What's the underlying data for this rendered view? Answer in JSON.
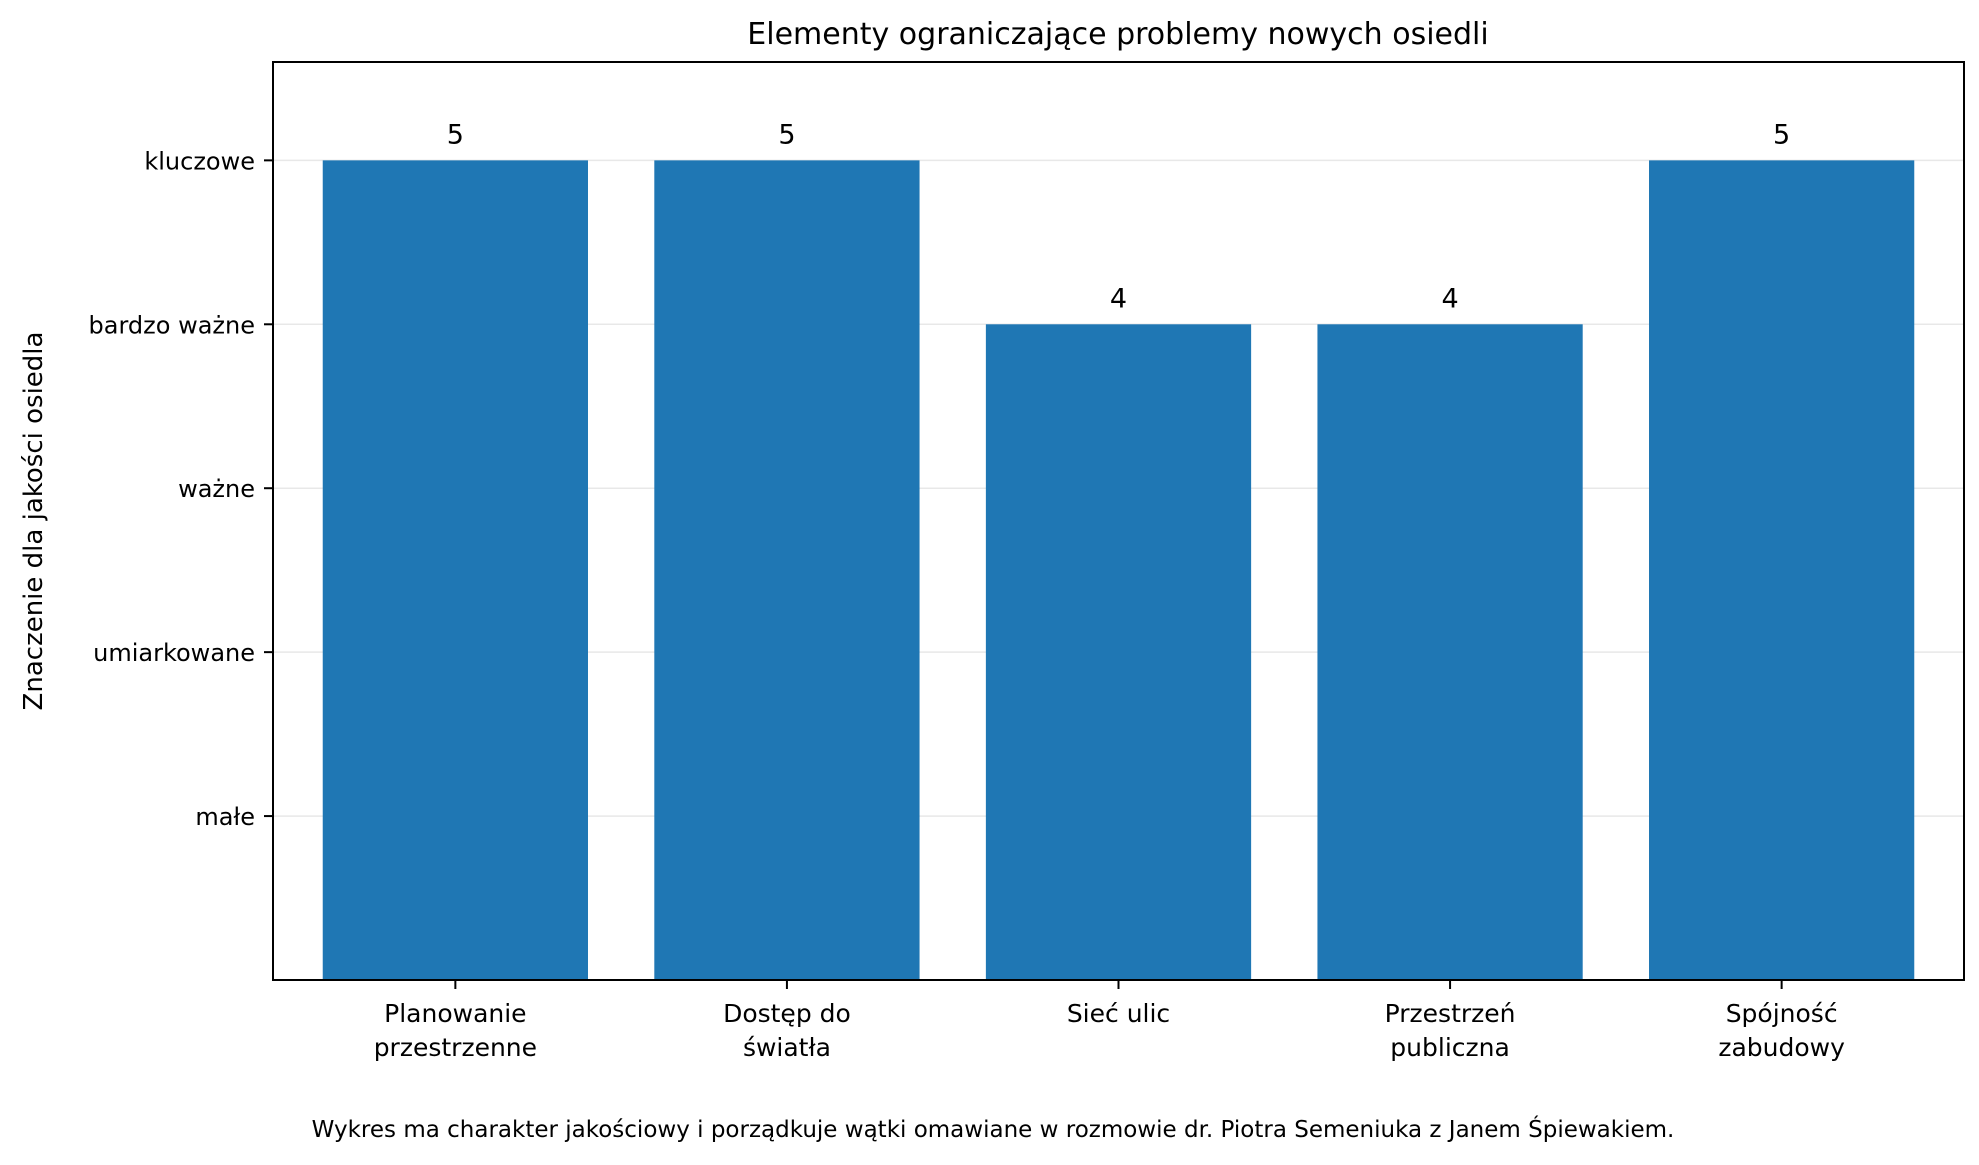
{
  "chart_data": {
    "type": "bar",
    "title": "Elementy ograniczające problemy nowych osiedli",
    "xlabel": "",
    "ylabel": "Znaczenie dla jakości osiedla",
    "categories": [
      [
        "Planowanie",
        "przestrzenne"
      ],
      [
        "Dostęp do",
        "światła"
      ],
      [
        "Sieć ulic"
      ],
      [
        "Przestrzeń",
        "publiczna"
      ],
      [
        "Spójność",
        "zabudowy"
      ]
    ],
    "values": [
      5,
      5,
      4,
      4,
      5
    ],
    "value_labels": [
      "5",
      "5",
      "4",
      "4",
      "5"
    ],
    "ylim": [
      0,
      5.6
    ],
    "yticks": [
      {
        "value": 1,
        "label": "małe"
      },
      {
        "value": 2,
        "label": "umiarkowane"
      },
      {
        "value": 3,
        "label": "ważne"
      },
      {
        "value": 4,
        "label": "bardzo ważne"
      },
      {
        "value": 5,
        "label": "kluczowe"
      }
    ],
    "grid": "horizontal",
    "legend": "none",
    "bar_color": "#1f77b4",
    "grid_color": "#e8e8e8"
  },
  "footnote": "Wykres ma charakter jakościowy i porządkuje wątki omawiane w rozmowie dr. Piotra Semeniuka z Janem Śpiewakiem."
}
